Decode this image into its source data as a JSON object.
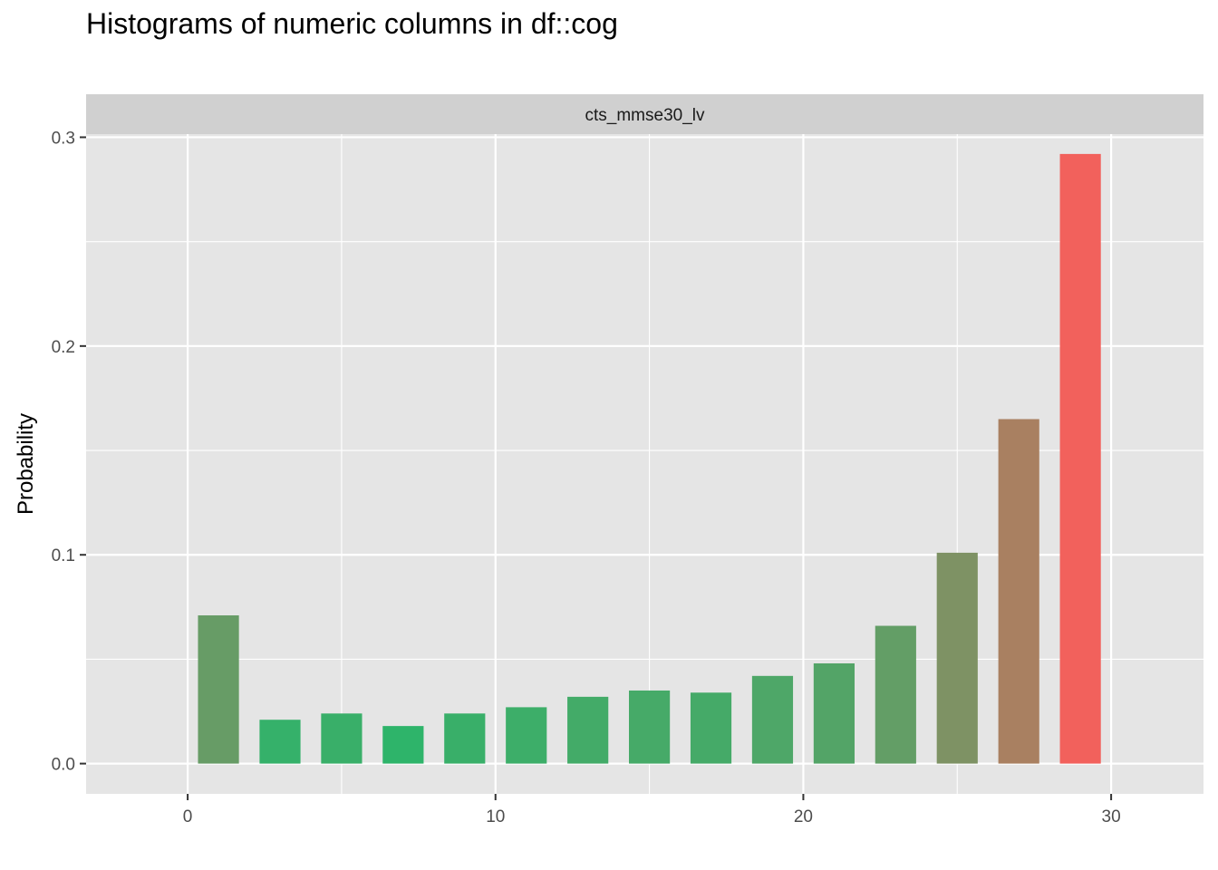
{
  "title": "Histograms of numeric columns in df::cog",
  "chart_data": {
    "type": "bar",
    "facet_label": "cts_mmse30_lv",
    "xlabel": "",
    "ylabel": "Probability",
    "xlim": [
      -3.3,
      33
    ],
    "ylim": [
      -0.0145,
      0.3015
    ],
    "x_ticks": [
      0,
      10,
      20,
      30
    ],
    "y_ticks": [
      0.0,
      0.1,
      0.2,
      0.3
    ],
    "x_tick_labels": [
      "0",
      "10",
      "20",
      "30"
    ],
    "y_tick_labels": [
      "0.0",
      "0.1",
      "0.2",
      "0.3"
    ],
    "grid": true,
    "bar_width": 1.33,
    "x": [
      1,
      3,
      5,
      7,
      9,
      11,
      13,
      15,
      17,
      19,
      21,
      23,
      25,
      27,
      29
    ],
    "values": [
      0.071,
      0.021,
      0.024,
      0.018,
      0.024,
      0.027,
      0.032,
      0.035,
      0.034,
      0.042,
      0.048,
      0.066,
      0.101,
      0.165,
      0.292
    ],
    "colors": {
      "panel_bg": "#e5e5e5",
      "strip_bg": "#d0d0d0",
      "grid": "#ffffff",
      "bar_low": "#2eb46a",
      "bar_high": "#f2615c"
    }
  }
}
